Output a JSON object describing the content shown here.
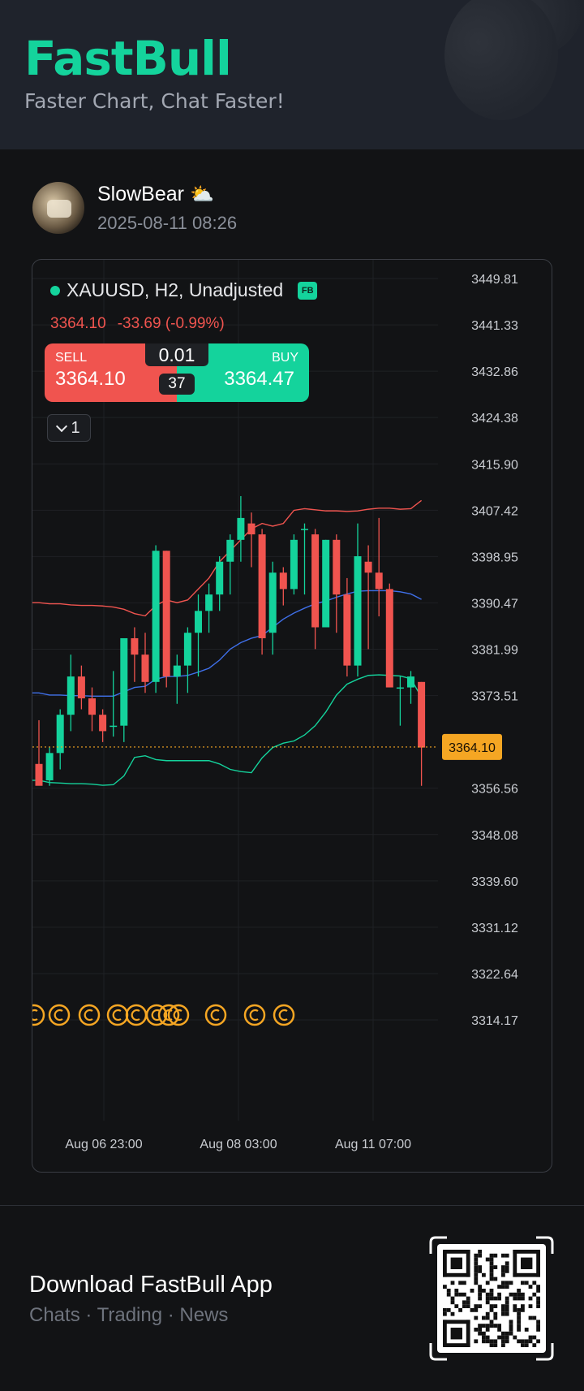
{
  "header": {
    "brand": "FastBull",
    "tagline": "Faster Chart, Chat Faster!"
  },
  "post": {
    "username": "SlowBear",
    "weather_icon": "partly-cloudy-icon",
    "timestamp": "2025-08-11 08:26"
  },
  "chart": {
    "symbol_line": "XAUUSD, H2, Unadjusted",
    "badge": "FB",
    "last_price": "3364.10",
    "change": "-33.69 (-0.99%)",
    "trade": {
      "sell_label": "SELL",
      "sell_price": "3364.10",
      "buy_label": "BUY",
      "buy_price": "3364.47",
      "lot": "0.01",
      "spread": "37"
    },
    "collapse_count": "1",
    "colors": {
      "up": "#14d39c",
      "down": "#f0544f",
      "mid_band": "#3f6fe8",
      "last_price_tag": "#f5a623"
    }
  },
  "chart_data": {
    "type": "candlestick",
    "symbol": "XAUUSD",
    "interval": "H2",
    "y_ticks": [
      "3449.81",
      "3441.33",
      "3432.86",
      "3424.38",
      "3415.90",
      "3407.42",
      "3398.95",
      "3390.47",
      "3381.99",
      "3373.51",
      "3356.56",
      "3348.08",
      "3339.60",
      "3331.12",
      "3322.64",
      "3314.17"
    ],
    "x_ticks": [
      "Aug 06 23:00",
      "Aug 08 03:00",
      "Aug 11 07:00"
    ],
    "last_price_tag": "3364.10",
    "ylim": [
      3309,
      3455
    ],
    "candles": [
      {
        "o": 3361,
        "h": 3369,
        "l": 3358,
        "c": 3357
      },
      {
        "o": 3358,
        "h": 3364,
        "l": 3357,
        "c": 3363
      },
      {
        "o": 3363,
        "h": 3371,
        "l": 3360,
        "c": 3370
      },
      {
        "o": 3370,
        "h": 3381,
        "l": 3367,
        "c": 3377
      },
      {
        "o": 3377,
        "h": 3379,
        "l": 3371,
        "c": 3373
      },
      {
        "o": 3373,
        "h": 3375,
        "l": 3367,
        "c": 3370
      },
      {
        "o": 3370,
        "h": 3371,
        "l": 3365,
        "c": 3367
      },
      {
        "o": 3368,
        "h": 3378,
        "l": 3366,
        "c": 3368
      },
      {
        "o": 3368,
        "h": 3384,
        "l": 3365,
        "c": 3384
      },
      {
        "o": 3384,
        "h": 3386,
        "l": 3376,
        "c": 3381
      },
      {
        "o": 3381,
        "h": 3385,
        "l": 3374,
        "c": 3376
      },
      {
        "o": 3376,
        "h": 3401,
        "l": 3374,
        "c": 3400
      },
      {
        "o": 3400,
        "h": 3400,
        "l": 3375,
        "c": 3377
      },
      {
        "o": 3377,
        "h": 3381,
        "l": 3372,
        "c": 3379
      },
      {
        "o": 3379,
        "h": 3386,
        "l": 3374,
        "c": 3385
      },
      {
        "o": 3385,
        "h": 3392,
        "l": 3377,
        "c": 3389
      },
      {
        "o": 3389,
        "h": 3394,
        "l": 3385,
        "c": 3392
      },
      {
        "o": 3392,
        "h": 3399,
        "l": 3389,
        "c": 3398
      },
      {
        "o": 3398,
        "h": 3403,
        "l": 3392,
        "c": 3402
      },
      {
        "o": 3402,
        "h": 3410,
        "l": 3398,
        "c": 3406
      },
      {
        "o": 3405,
        "h": 3407,
        "l": 3397,
        "c": 3403
      },
      {
        "o": 3403,
        "h": 3404,
        "l": 3381,
        "c": 3384
      },
      {
        "o": 3385,
        "h": 3398,
        "l": 3381,
        "c": 3396
      },
      {
        "o": 3396,
        "h": 3397,
        "l": 3390,
        "c": 3393
      },
      {
        "o": 3393,
        "h": 3403,
        "l": 3392,
        "c": 3402
      },
      {
        "o": 3404,
        "h": 3405,
        "l": 3392,
        "c": 3404
      },
      {
        "o": 3403,
        "h": 3404,
        "l": 3382,
        "c": 3386
      },
      {
        "o": 3386,
        "h": 3402,
        "l": 3386,
        "c": 3402
      },
      {
        "o": 3402,
        "h": 3403,
        "l": 3385,
        "c": 3392
      },
      {
        "o": 3392,
        "h": 3395,
        "l": 3377,
        "c": 3379
      },
      {
        "o": 3379,
        "h": 3405,
        "l": 3377,
        "c": 3399
      },
      {
        "o": 3398,
        "h": 3401,
        "l": 3382,
        "c": 3396
      },
      {
        "o": 3396,
        "h": 3406,
        "l": 3388,
        "c": 3393
      },
      {
        "o": 3393,
        "h": 3394,
        "l": 3375,
        "c": 3375
      },
      {
        "o": 3375,
        "h": 3377,
        "l": 3368,
        "c": 3375
      },
      {
        "o": 3375,
        "h": 3378,
        "l": 3372,
        "c": 3377
      },
      {
        "o": 3376,
        "h": 3376,
        "l": 3357,
        "c": 3364
      }
    ],
    "upper_band": [
      3390.5,
      3390.3,
      3390.3,
      3390.1,
      3390,
      3390,
      3389.9,
      3389.7,
      3389.3,
      3388.5,
      3388.1,
      3390,
      3391,
      3390.5,
      3391,
      3393,
      3395,
      3398,
      3400,
      3402,
      3404,
      3405,
      3404.5,
      3405,
      3407.4,
      3407.7,
      3407.5,
      3407.3,
      3407.3,
      3407.2,
      3407.3,
      3407.6,
      3407.8,
      3407.8,
      3407.6,
      3407.7,
      3409.2
    ],
    "middle_band": [
      3374,
      3373.6,
      3373.6,
      3373.5,
      3373.5,
      3373.4,
      3373.4,
      3373.4,
      3374.2,
      3375,
      3375.2,
      3376.5,
      3377,
      3377,
      3377.2,
      3377.8,
      3378.5,
      3380,
      3382,
      3383.2,
      3384,
      3384.5,
      3386,
      3387.5,
      3388.6,
      3389.5,
      3390.3,
      3390.8,
      3391.5,
      3392.1,
      3392.6,
      3392.7,
      3392.7,
      3392.7,
      3392.5,
      3392.1,
      3391.1
    ],
    "lower_band": [
      3358,
      3357.6,
      3357.5,
      3357.4,
      3357.4,
      3357.3,
      3357.1,
      3357.2,
      3358.8,
      3362.2,
      3362.5,
      3361.8,
      3361.6,
      3361.6,
      3361.6,
      3361.6,
      3361.6,
      3361,
      3360,
      3359.6,
      3359.4,
      3362.1,
      3364,
      3364.8,
      3365.2,
      3366.3,
      3368,
      3370.5,
      3373.6,
      3375.6,
      3376.5,
      3377.2,
      3377.3,
      3377.2,
      3377.1,
      3376.6,
      3373.2
    ],
    "events_row_icons": 12
  },
  "footer": {
    "download_title": "Download FastBull App",
    "download_sub": "Chats · Trading · News",
    "qr_icon": "qr-code-icon"
  }
}
